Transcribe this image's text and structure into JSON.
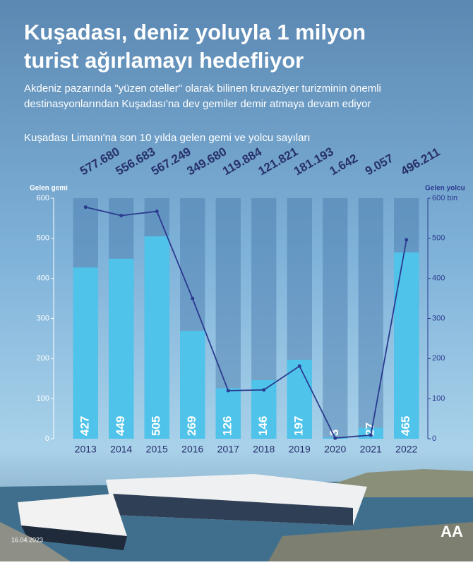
{
  "header": {
    "title": "Kuşadası, deniz yoluyla 1 milyon turist ağırlamayı hedefliyor",
    "subtitle": "Akdeniz pazarında \"yüzen oteller\" olarak bilinen kruvaziyer turizminin önemli destinasyonlarından Kuşadası'na dev gemiler demir atmaya devam ediyor",
    "date": "16.04.2023",
    "logo": "AA"
  },
  "chart_data": {
    "type": "bar",
    "title": "Kuşadası Limanı'na son 10 yılda gelen gemi ve yolcu sayıları",
    "ylabel": "Gelen gemi",
    "y2label": "Gelen yolcu",
    "categories": [
      "2013",
      "2014",
      "2015",
      "2016",
      "2017",
      "2018",
      "2019",
      "2020",
      "2021",
      "2022"
    ],
    "series": [
      {
        "name": "Gelen gemi",
        "type": "bar",
        "color": "#4fc3ea",
        "values": [
          427,
          449,
          505,
          269,
          126,
          146,
          197,
          3,
          27,
          465
        ]
      },
      {
        "name": "Gelen yolcu",
        "type": "line",
        "axis": "y2",
        "color": "#2b3a8f",
        "values": [
          577.68,
          556.683,
          567.249,
          349.68,
          119.884,
          121.821,
          181.193,
          1.642,
          9.057,
          496.211
        ],
        "value_labels": [
          "577.680",
          "556.683",
          "567.249",
          "349.680",
          "119.884",
          "121.821",
          "181.193",
          "1.642",
          "9.057",
          "496.211"
        ]
      }
    ],
    "ylim": [
      0,
      600
    ],
    "yticks": [
      0,
      100,
      200,
      300,
      400,
      500,
      600
    ],
    "y2lim": [
      0,
      600
    ],
    "y2ticks": [
      0,
      100,
      200,
      300,
      400,
      500,
      {
        "value": 600,
        "label": "600 bin"
      }
    ]
  }
}
